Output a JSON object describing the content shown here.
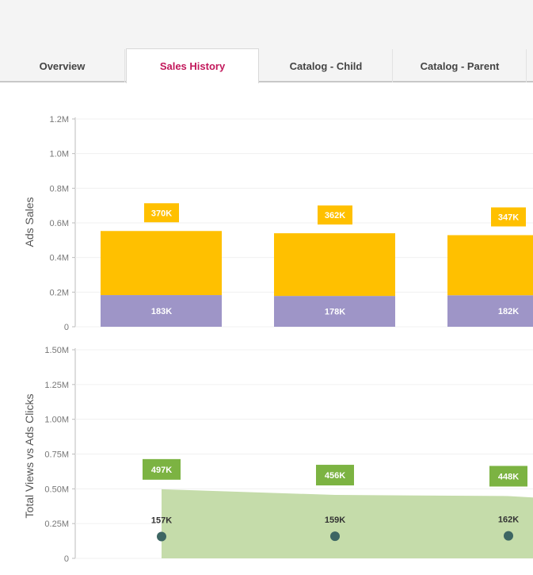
{
  "tabs": [
    {
      "label": "Overview",
      "active": false
    },
    {
      "label": "Sales History",
      "active": true
    },
    {
      "label": "Catalog - Child",
      "active": false
    },
    {
      "label": "Catalog - Parent",
      "active": false
    }
  ],
  "chart_data": [
    {
      "type": "bar",
      "stacked": true,
      "ylabel": "Ads Sales",
      "ylim": [
        0,
        1200000
      ],
      "yticks": [
        "0",
        "0.2M",
        "0.4M",
        "0.6M",
        "0.8M",
        "1.0M",
        "1.2M"
      ],
      "grid": true,
      "series": [
        {
          "values": [
            183000,
            178000,
            182000
          ],
          "labels": [
            "183K",
            "178K",
            "182K"
          ],
          "color": "#9e95c7"
        },
        {
          "values": [
            370000,
            362000,
            347000
          ],
          "labels": [
            "370K",
            "362K",
            "347K"
          ],
          "color": "#ffc000"
        }
      ]
    },
    {
      "type": "area",
      "ylabel": "Total Views vs Ads Clicks",
      "ylim": [
        0,
        1500000
      ],
      "yticks": [
        "0",
        "0.25M",
        "0.50M",
        "0.75M",
        "1.00M",
        "1.25M",
        "1.50M"
      ],
      "grid": true,
      "series": [
        {
          "type": "area",
          "values": [
            497000,
            456000,
            448000
          ],
          "labels": [
            "497K",
            "456K",
            "448K"
          ],
          "color": "#c5dcaa",
          "label_color": "#7cb342"
        },
        {
          "type": "scatter",
          "values": [
            157000,
            159000,
            162000
          ],
          "labels": [
            "157K",
            "159K",
            "162K"
          ],
          "color": "#3d6663"
        }
      ]
    }
  ]
}
